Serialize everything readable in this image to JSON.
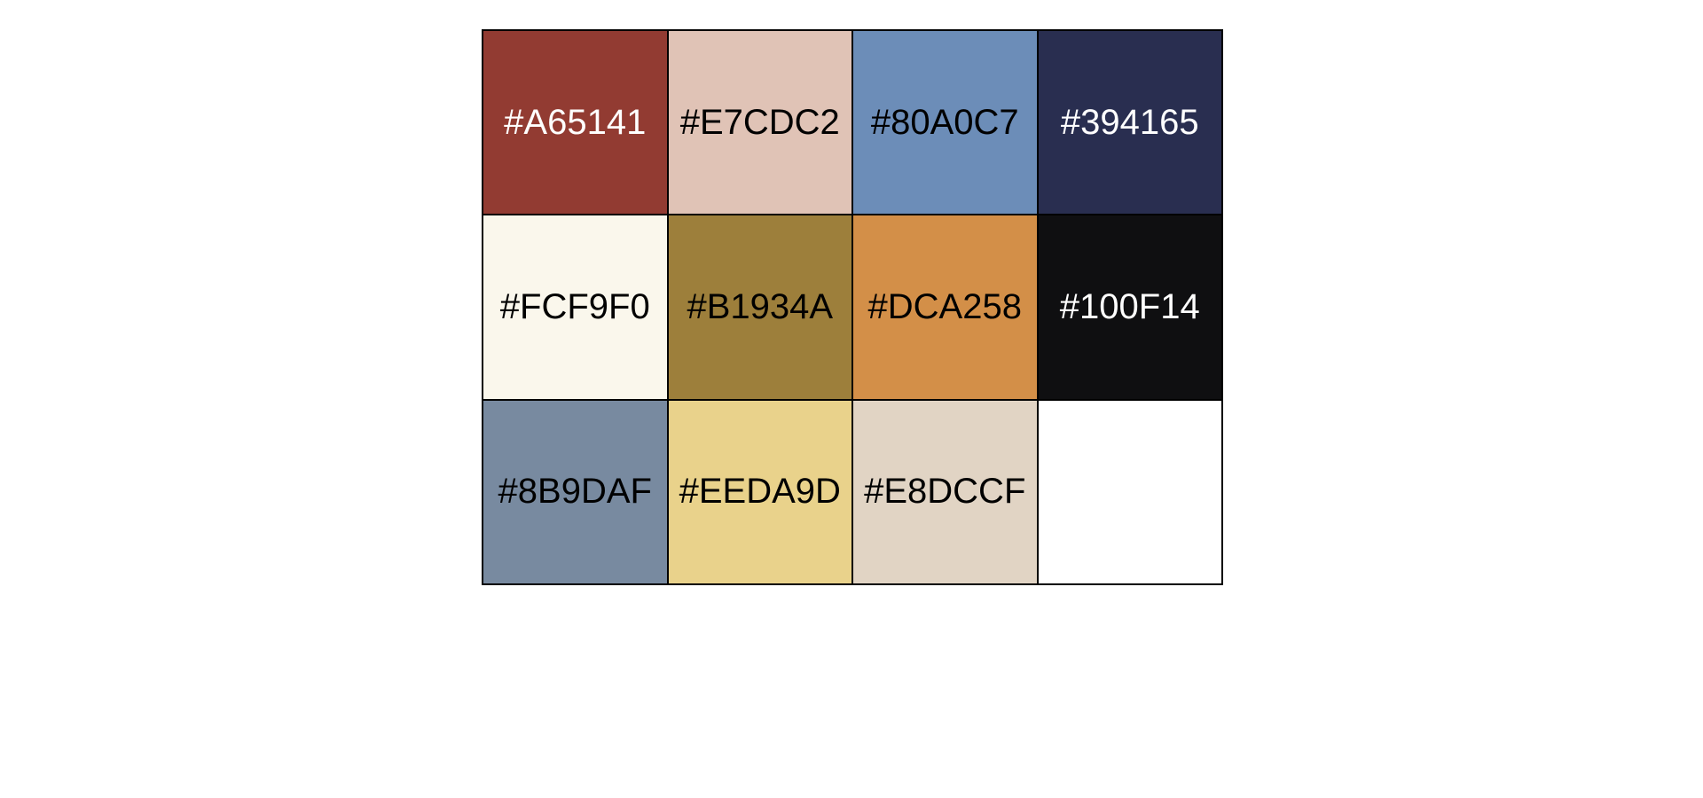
{
  "palette": {
    "swatches": [
      {
        "label": "#A65141",
        "fill": "#923B32",
        "text_color": "#FFFFFF"
      },
      {
        "label": "#E7CDC2",
        "fill": "#E0C3B6",
        "text_color": "#000000"
      },
      {
        "label": "#80A0C7",
        "fill": "#6C8DB8",
        "text_color": "#000000"
      },
      {
        "label": "#394165",
        "fill": "#292E50",
        "text_color": "#FFFFFF"
      },
      {
        "label": "#FCF9F0",
        "fill": "#FAF7EC",
        "text_color": "#000000"
      },
      {
        "label": "#B1934A",
        "fill": "#9D7F3B",
        "text_color": "#000000"
      },
      {
        "label": "#DCA258",
        "fill": "#D38F48",
        "text_color": "#000000"
      },
      {
        "label": "#100F14",
        "fill": "#0F0F11",
        "text_color": "#FFFFFF"
      },
      {
        "label": "#8B9DAF",
        "fill": "#788AA0",
        "text_color": "#000000"
      },
      {
        "label": "#EEDA9D",
        "fill": "#E9D28B",
        "text_color": "#000000"
      },
      {
        "label": "#E8DCCF",
        "fill": "#E1D4C4",
        "text_color": "#000000"
      },
      {
        "label": "",
        "fill": "#FFFFFF",
        "text_color": "#000000"
      }
    ]
  }
}
